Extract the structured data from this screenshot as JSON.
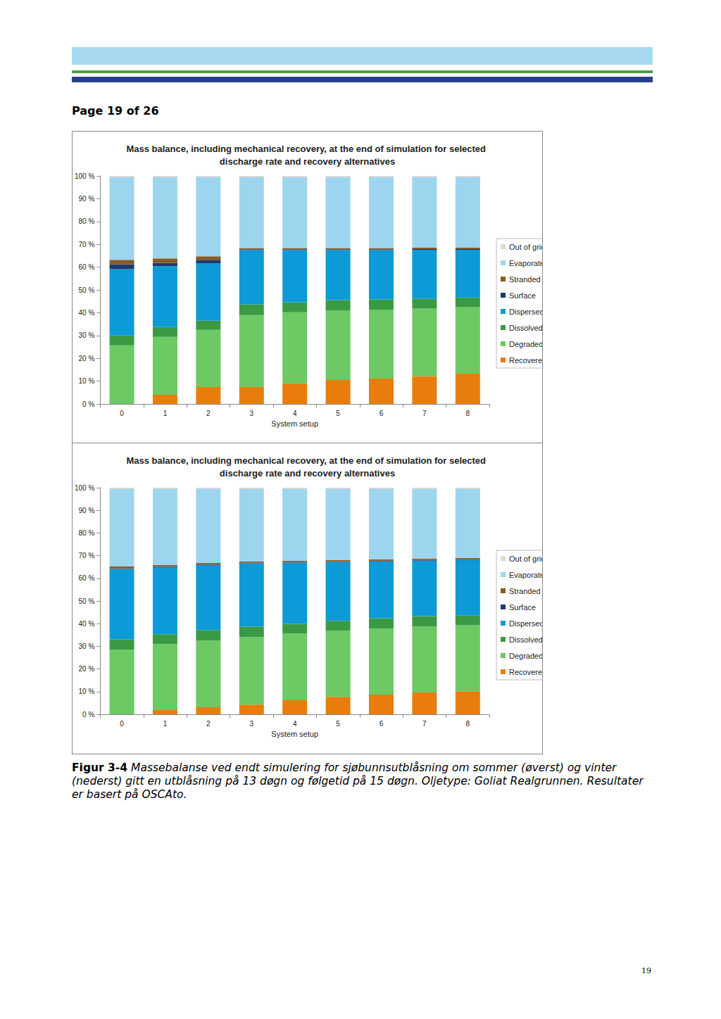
{
  "header": {
    "page": "Page 19 of 26"
  },
  "chart_data": [
    {
      "type": "bar",
      "stacked": true,
      "grid": false,
      "legend": "right",
      "title": "Mass balance, including mechanical recovery, at the end of simulation for selected discharge rate and recovery alternatives",
      "x_label": "System setup",
      "categories": [
        "0",
        "1",
        "2",
        "3",
        "4",
        "5",
        "6",
        "7",
        "8"
      ],
      "ylim": [
        0,
        100
      ],
      "yticks": [
        {
          "value": 0,
          "label": "0 %"
        },
        {
          "value": 10,
          "label": "10 %"
        },
        {
          "value": 20,
          "label": "20 %"
        },
        {
          "value": 30,
          "label": "30 %"
        },
        {
          "value": 40,
          "label": "40 %"
        },
        {
          "value": 50,
          "label": "50 %"
        },
        {
          "value": 60,
          "label": "60 %"
        },
        {
          "value": 70,
          "label": "70 %"
        },
        {
          "value": 80,
          "label": "80 %"
        },
        {
          "value": 90,
          "label": "90 %"
        },
        {
          "value": 100,
          "label": "100 %"
        }
      ],
      "series": [
        {
          "name": "Recovered",
          "color": "#e87d0d",
          "values": [
            0,
            4.0,
            7.4,
            7.4,
            9.0,
            10.5,
            11.1,
            12.1,
            13.3
          ]
        },
        {
          "name": "Degraded",
          "color": "#6cc964",
          "values": [
            25.7,
            25.4,
            25.1,
            31.6,
            31.2,
            30.4,
            30.1,
            29.7,
            29.1
          ]
        },
        {
          "name": "Dissolved",
          "color": "#3a9a44",
          "values": [
            4.3,
            4.3,
            4.0,
            4.7,
            4.4,
            4.6,
            4.6,
            4.3,
            4.3
          ]
        },
        {
          "name": "Dispersed",
          "color": "#0d9ad6",
          "values": [
            29.1,
            26.7,
            25.1,
            23.8,
            22.9,
            22.0,
            21.7,
            21.5,
            20.9
          ]
        },
        {
          "name": "Surface",
          "color": "#1f3a70",
          "values": [
            2.2,
            1.5,
            1.6,
            0.3,
            0.3,
            0.3,
            0.3,
            0.3,
            0.3
          ]
        },
        {
          "name": "Stranded",
          "color": "#8b5a1e",
          "values": [
            1.9,
            1.9,
            1.5,
            0.6,
            0.6,
            0.6,
            0.6,
            0.6,
            0.6
          ]
        },
        {
          "name": "Evaporated",
          "color": "#9dd5ef",
          "values": [
            36.2,
            35.6,
            34.7,
            31.0,
            31.0,
            31.0,
            31.0,
            30.9,
            30.9
          ]
        },
        {
          "name": "Out of grid",
          "color": "#d9d9d9",
          "values": [
            0.6,
            0.6,
            0.6,
            0.6,
            0.6,
            0.6,
            0.6,
            0.6,
            0.6
          ]
        }
      ]
    },
    {
      "type": "bar",
      "stacked": true,
      "grid": false,
      "legend": "right",
      "title": "Mass balance, including mechanical recovery, at the end of simulation for selected discharge rate and recovery alternatives",
      "x_label": "System setup",
      "categories": [
        "0",
        "1",
        "2",
        "3",
        "4",
        "5",
        "6",
        "7",
        "8"
      ],
      "ylim": [
        0,
        100
      ],
      "yticks": [
        {
          "value": 0,
          "label": "0 %"
        },
        {
          "value": 10,
          "label": "10 %"
        },
        {
          "value": 20,
          "label": "20 %"
        },
        {
          "value": 30,
          "label": "30 %"
        },
        {
          "value": 40,
          "label": "40 %"
        },
        {
          "value": 50,
          "label": "50 %"
        },
        {
          "value": 60,
          "label": "60 %"
        },
        {
          "value": 70,
          "label": "70 %"
        },
        {
          "value": 80,
          "label": "80 %"
        },
        {
          "value": 90,
          "label": "90 %"
        },
        {
          "value": 100,
          "label": "100 %"
        }
      ],
      "series": [
        {
          "name": "Recovered",
          "color": "#e87d0d",
          "values": [
            0,
            1.9,
            3.1,
            4.3,
            6.2,
            7.7,
            8.7,
            9.6,
            10.2
          ]
        },
        {
          "name": "Degraded",
          "color": "#6cc964",
          "values": [
            28.5,
            29.1,
            29.4,
            29.8,
            29.4,
            29.1,
            29.1,
            29.1,
            29.1
          ]
        },
        {
          "name": "Dissolved",
          "color": "#3a9a44",
          "values": [
            4.6,
            4.3,
            4.7,
            4.6,
            4.3,
            4.4,
            4.6,
            4.6,
            4.4
          ]
        },
        {
          "name": "Dispersed",
          "color": "#0d9ad6",
          "values": [
            31.0,
            29.7,
            28.7,
            27.9,
            27.0,
            26.0,
            25.1,
            24.5,
            24.4
          ]
        },
        {
          "name": "Surface",
          "color": "#1f3a70",
          "values": [
            0.3,
            0.3,
            0.3,
            0.3,
            0.3,
            0.3,
            0.3,
            0.3,
            0.3
          ]
        },
        {
          "name": "Stranded",
          "color": "#8b5a1e",
          "values": [
            0.9,
            0.6,
            0.6,
            0.6,
            0.6,
            0.6,
            0.6,
            0.6,
            0.6
          ]
        },
        {
          "name": "Evaporated",
          "color": "#9dd5ef",
          "values": [
            34.1,
            33.5,
            32.6,
            31.9,
            31.6,
            31.3,
            31.0,
            30.7,
            30.4
          ]
        },
        {
          "name": "Out of grid",
          "color": "#d9d9d9",
          "values": [
            0.6,
            0.6,
            0.6,
            0.6,
            0.6,
            0.6,
            0.6,
            0.6,
            0.6
          ]
        }
      ]
    }
  ],
  "caption": {
    "label": "Figur 3-4",
    "text": "Massebalanse ved endt simulering for sjøbunnsutblåsning om sommer (øverst) og vinter (nederst) gitt en utblåsning på 13 døgn og følgetid på 15 døgn. Oljetype: Goliat Realgrunnen. Resultater er basert på OSCAto."
  },
  "page_number": "19"
}
